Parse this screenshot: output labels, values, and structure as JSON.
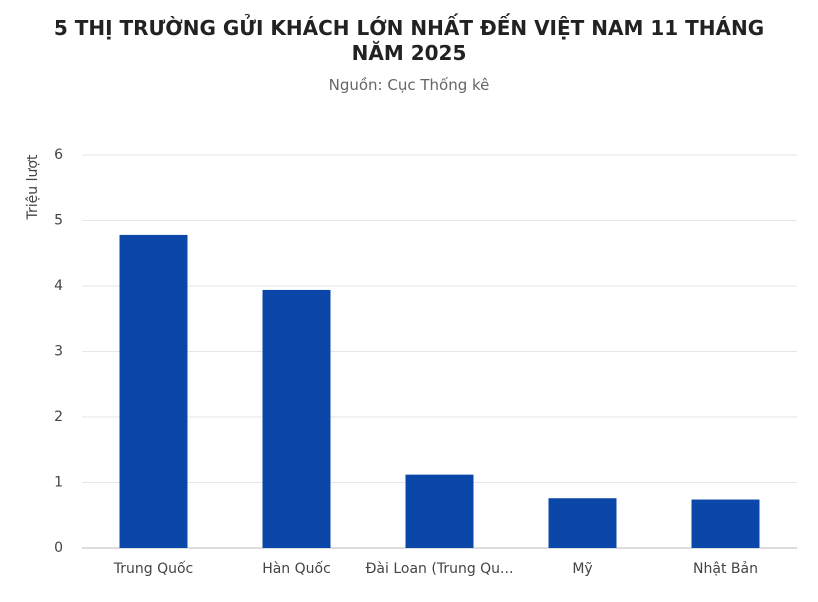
{
  "chart_data": {
    "type": "bar",
    "title": "5 THỊ TRƯỜNG GỬI KHÁCH LỚN NHẤT ĐẾN VIỆT NAM 11 THÁNG NĂM 2025",
    "subtitle": "Nguồn: Cục Thống kê",
    "y_label": "Triệu lượt",
    "categories": [
      "Trung Quốc",
      "Hàn Quốc",
      "Đài Loan (Trung Qu...",
      "Mỹ",
      "Nhật Bản"
    ],
    "values": [
      4.78,
      3.94,
      1.12,
      0.76,
      0.74
    ],
    "color": "#0b47a8",
    "ylim": [
      0,
      6
    ],
    "yticks": [
      0,
      1,
      2,
      3,
      4,
      5,
      6
    ],
    "grid": true
  }
}
